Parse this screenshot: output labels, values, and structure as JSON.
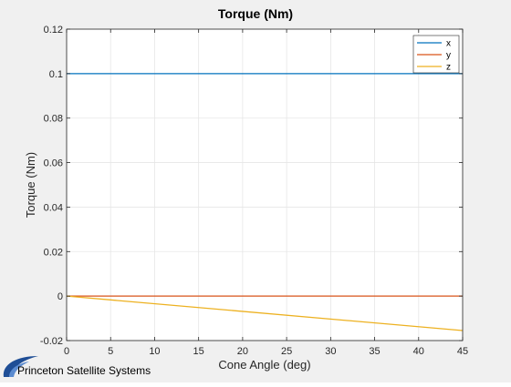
{
  "chart_data": {
    "type": "line",
    "title": "Torque (Nm)",
    "xlabel": "Cone Angle (deg)",
    "ylabel": "Torque (Nm)",
    "xlim": [
      0,
      45
    ],
    "ylim": [
      -0.02,
      0.12
    ],
    "xticks": [
      0,
      5,
      10,
      15,
      20,
      25,
      30,
      35,
      40,
      45
    ],
    "yticks": [
      -0.02,
      0,
      0.02,
      0.04,
      0.06,
      0.08,
      0.1,
      0.12
    ],
    "ytick_labels": [
      "-0.02",
      "0",
      "0.02",
      "0.04",
      "0.06",
      "0.08",
      "0.1",
      "0.12"
    ],
    "grid": true,
    "legend_position": "top-right",
    "series": [
      {
        "name": "x",
        "color": "#0072bd",
        "x": [
          0,
          45
        ],
        "y": [
          0.1,
          0.1
        ]
      },
      {
        "name": "y",
        "color": "#d95319",
        "x": [
          0,
          45
        ],
        "y": [
          0,
          0
        ]
      },
      {
        "name": "z",
        "color": "#edb120",
        "x": [
          0,
          45
        ],
        "y": [
          0,
          -0.0155
        ]
      }
    ]
  },
  "footer": {
    "logo_text": "Princeton Satellite Systems",
    "logo_color": "#1f4e96"
  }
}
